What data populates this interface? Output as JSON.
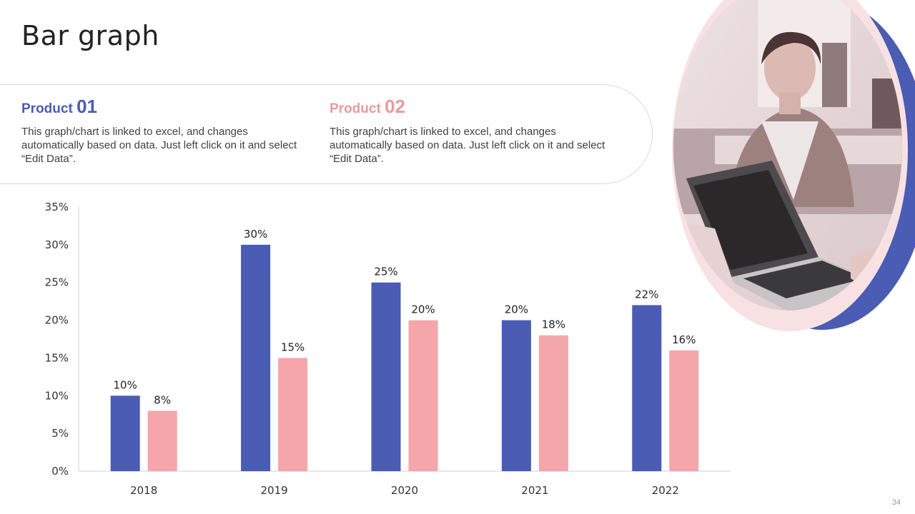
{
  "slide": {
    "title": "Bar graph",
    "page_number": "34"
  },
  "products": [
    {
      "label": "Product",
      "number": "01",
      "color": "#4a5cb3",
      "description": "This graph/chart is linked to excel, and changes automatically based on data. Just left click on it and select “Edit Data”."
    },
    {
      "label": "Product",
      "number": "02",
      "color": "#e99aa0",
      "description": "This graph/chart is linked to excel, and changes automatically based on data. Just left click on it and select “Edit Data”."
    }
  ],
  "chart_data": {
    "type": "bar",
    "categories": [
      "2018",
      "2019",
      "2020",
      "2021",
      "2022"
    ],
    "series": [
      {
        "name": "Product 01",
        "color": "#4a5cb3",
        "values": [
          10,
          30,
          25,
          20,
          22
        ],
        "labels": [
          "10%",
          "30%",
          "25%",
          "20%",
          "22%"
        ]
      },
      {
        "name": "Product 02",
        "color": "#f4a6aa",
        "values": [
          8,
          15,
          20,
          18,
          16
        ],
        "labels": [
          "8%",
          "15%",
          "20%",
          "18%",
          "16%"
        ]
      }
    ],
    "ylim": [
      0,
      35
    ],
    "yticks": [
      0,
      5,
      10,
      15,
      20,
      25,
      30,
      35
    ],
    "ytick_labels": [
      "0%",
      "5%",
      "10%",
      "15%",
      "20%",
      "25%",
      "30%",
      "35%"
    ],
    "grid": false,
    "title": "",
    "xlabel": "",
    "ylabel": ""
  }
}
